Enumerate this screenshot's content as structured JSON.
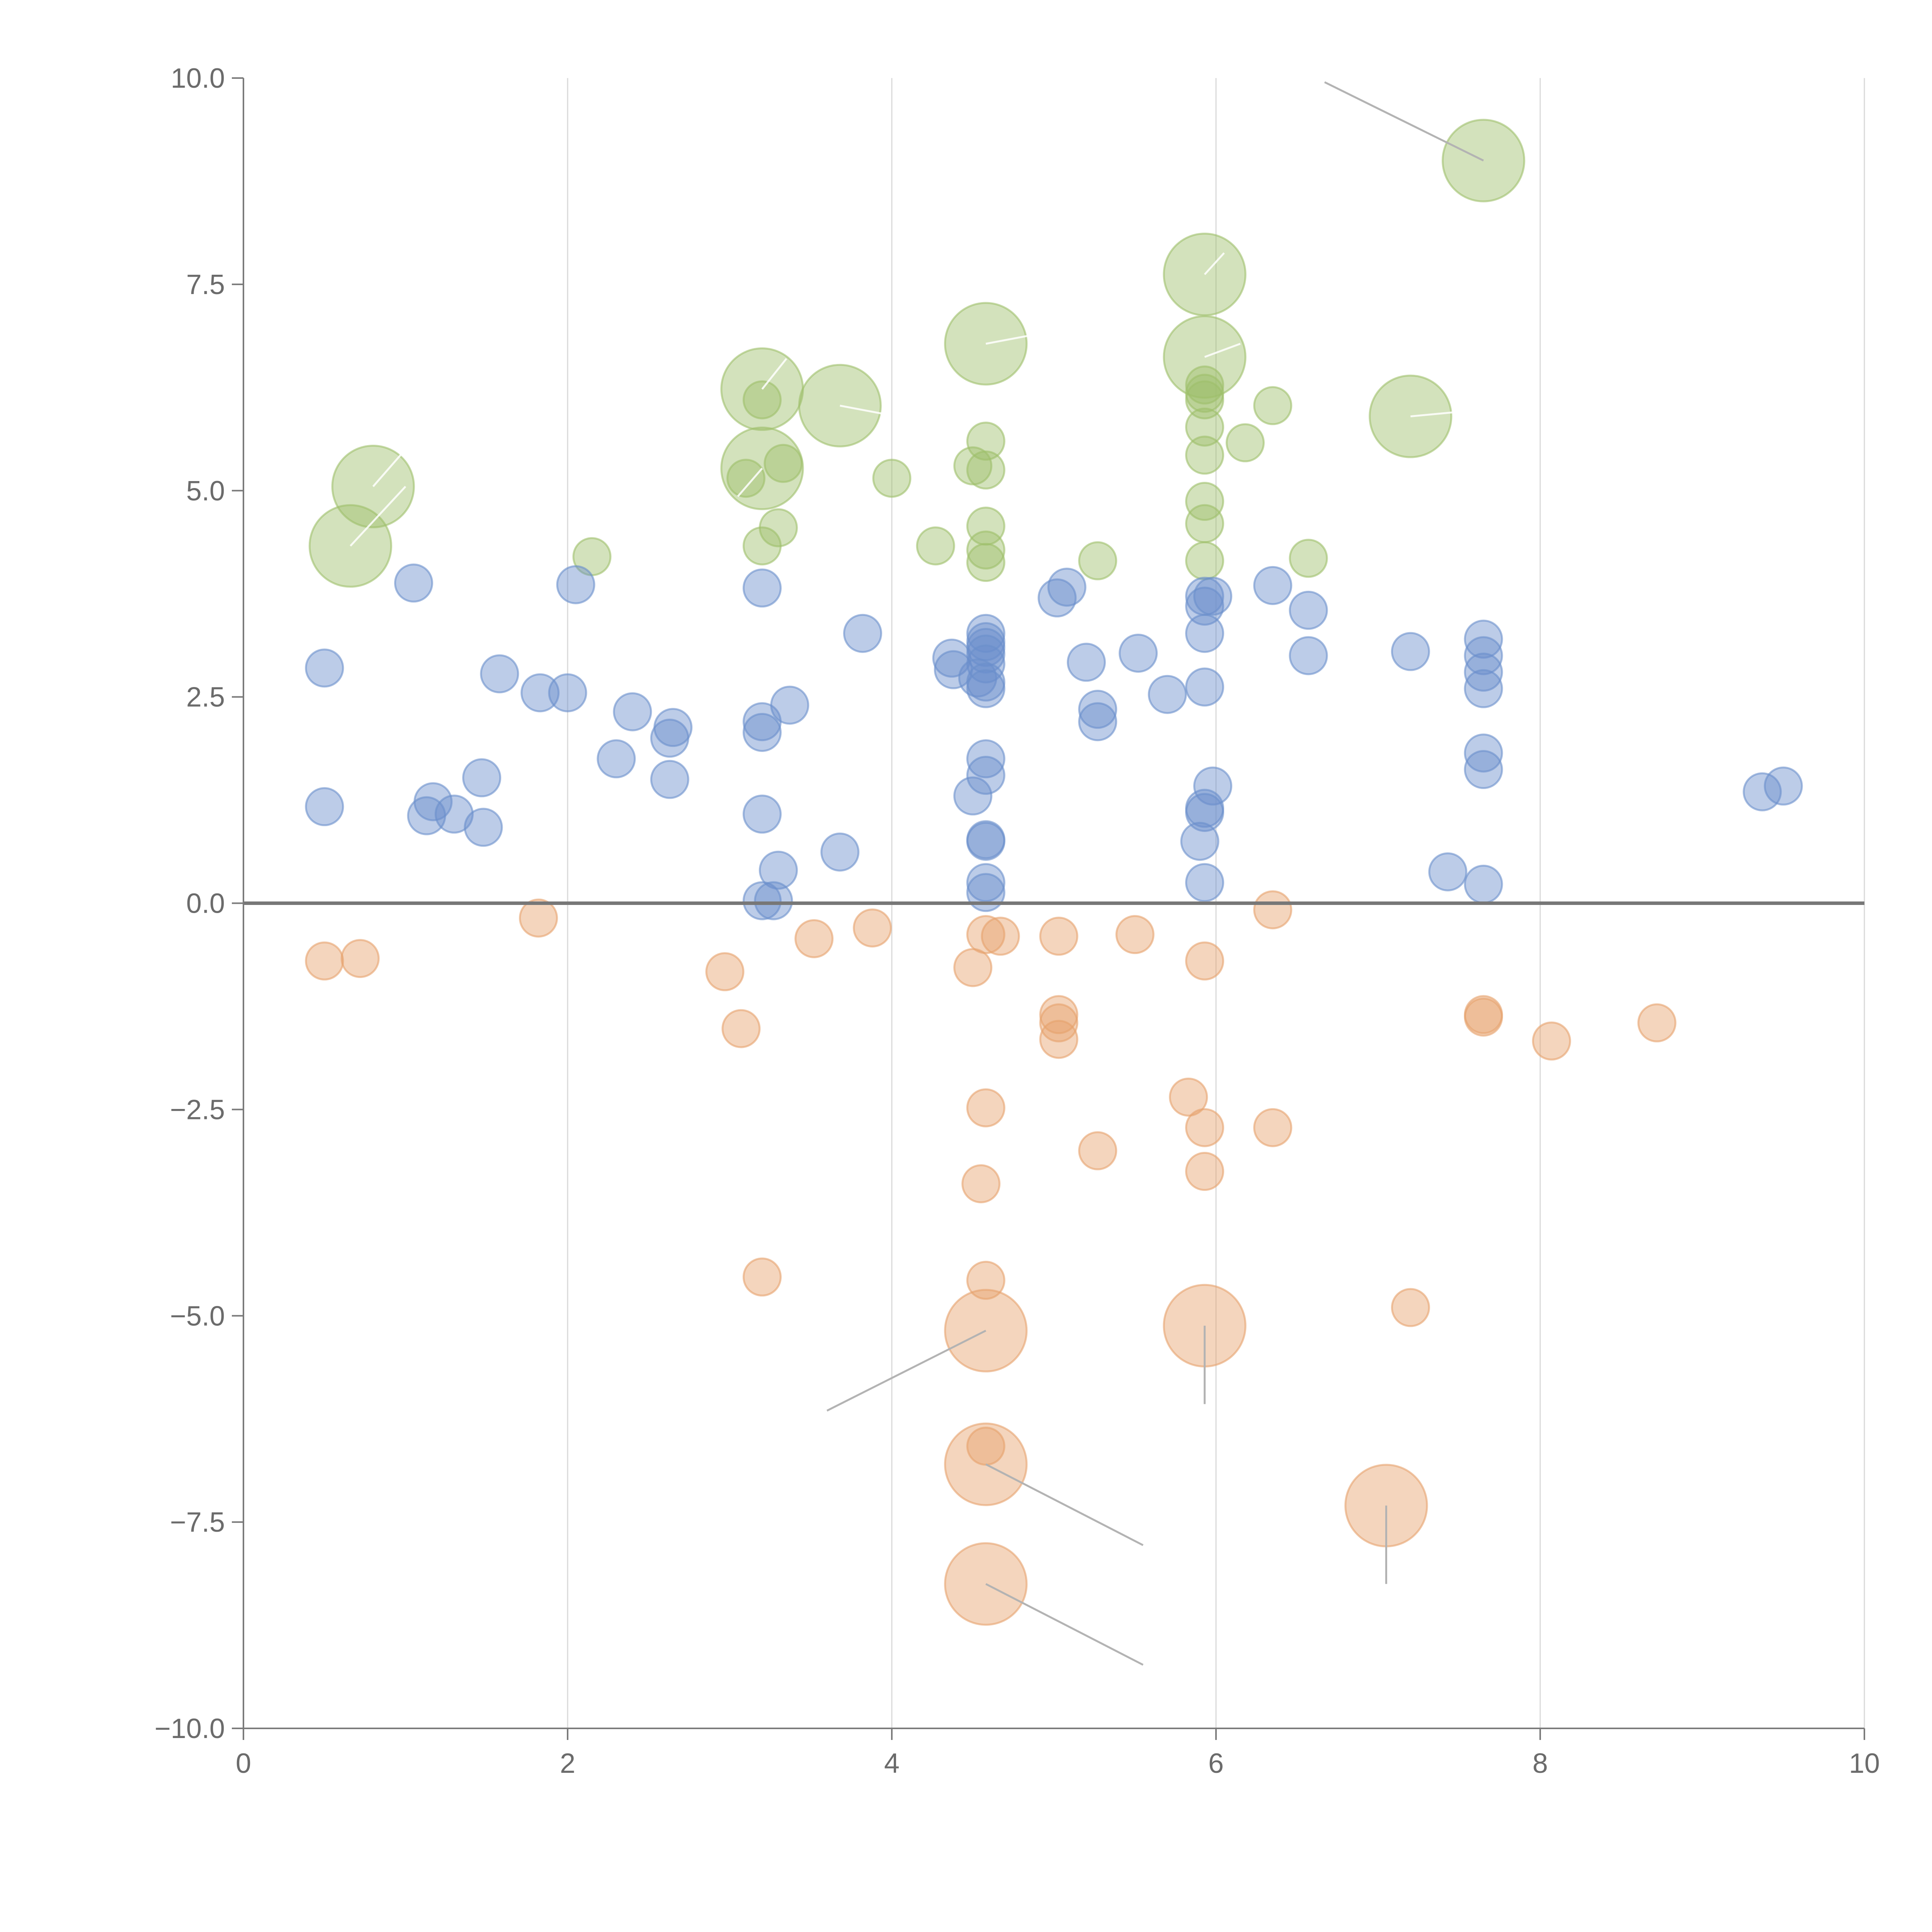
{
  "chart_data": {
    "type": "scatter",
    "title": "",
    "xlabel": "",
    "ylabel": "",
    "xlim": [
      0,
      10
    ],
    "ylim": [
      -10,
      10
    ],
    "grid": "vertical",
    "x_ticks": [
      0,
      2,
      4,
      6,
      8,
      10
    ],
    "x_tick_labels": [
      "0",
      "2",
      "4",
      "6",
      "8",
      "10"
    ],
    "y_ticks": [
      10,
      7.5,
      5,
      2.5,
      0,
      -2.5,
      -5,
      -7.5,
      -10
    ],
    "y_tick_labels": [
      "10.0",
      "7.5",
      "5.0",
      "2.5",
      "0.0",
      "−2.5",
      "−5.0",
      "−7.5",
      "−10.0"
    ],
    "reference_line": {
      "y": 0,
      "color": "#777777"
    },
    "colors": {
      "green": "#9ebf6a",
      "blue": "#6a8fcc",
      "orange": "#e6a26c"
    },
    "series": [
      {
        "name": "green",
        "color": "#9ebf6a",
        "points": [
          [
            0.8,
            5.05,
            2.2
          ],
          [
            0.66,
            4.33,
            2.2
          ],
          [
            2.15,
            4.2,
            1
          ],
          [
            3.2,
            6.23,
            2.2
          ],
          [
            3.2,
            5.27,
            2.2
          ],
          [
            3.2,
            6.1,
            1
          ],
          [
            3.1,
            5.15,
            1
          ],
          [
            3.2,
            4.33,
            1
          ],
          [
            3.33,
            5.33,
            1
          ],
          [
            3.3,
            4.55,
            1
          ],
          [
            3.68,
            6.03,
            2.2
          ],
          [
            4.0,
            5.15,
            1
          ],
          [
            4.27,
            4.33,
            1
          ],
          [
            4.5,
            5.3,
            1
          ],
          [
            4.58,
            5.6,
            1
          ],
          [
            4.58,
            5.25,
            1
          ],
          [
            4.58,
            4.57,
            1
          ],
          [
            4.58,
            4.28,
            1
          ],
          [
            4.58,
            4.13,
            1
          ],
          [
            4.58,
            6.78,
            2.2
          ],
          [
            5.27,
            4.15,
            1
          ],
          [
            5.93,
            7.62,
            2.2
          ],
          [
            5.93,
            6.62,
            2.2
          ],
          [
            5.93,
            6.28,
            1
          ],
          [
            5.93,
            6.18,
            1
          ],
          [
            5.93,
            6.1,
            1
          ],
          [
            5.93,
            5.77,
            1
          ],
          [
            5.93,
            5.43,
            1
          ],
          [
            5.93,
            4.87,
            1
          ],
          [
            5.93,
            4.6,
            1
          ],
          [
            5.93,
            4.15,
            1
          ],
          [
            6.18,
            5.58,
            1
          ],
          [
            6.35,
            6.03,
            1
          ],
          [
            6.57,
            4.18,
            1
          ],
          [
            7.2,
            5.9,
            2.2
          ],
          [
            7.65,
            9.0,
            2.2
          ]
        ]
      },
      {
        "name": "blue",
        "color": "#6a8fcc",
        "points": [
          [
            0.5,
            2.85,
            1
          ],
          [
            0.5,
            1.17,
            1
          ],
          [
            1.05,
            3.88,
            1
          ],
          [
            1.17,
            1.23,
            1
          ],
          [
            1.13,
            1.06,
            1
          ],
          [
            1.3,
            1.08,
            1
          ],
          [
            1.47,
            1.52,
            1
          ],
          [
            1.48,
            0.92,
            1
          ],
          [
            1.58,
            2.78,
            1
          ],
          [
            1.83,
            2.55,
            1
          ],
          [
            2.0,
            2.55,
            1
          ],
          [
            2.05,
            3.86,
            1
          ],
          [
            2.3,
            1.75,
            1
          ],
          [
            2.4,
            2.32,
            1
          ],
          [
            2.63,
            2.0,
            1
          ],
          [
            2.65,
            2.13,
            1
          ],
          [
            2.63,
            1.5,
            1
          ],
          [
            3.2,
            3.82,
            1
          ],
          [
            3.2,
            2.2,
            1
          ],
          [
            3.2,
            2.07,
            1
          ],
          [
            3.37,
            2.4,
            1
          ],
          [
            3.2,
            1.08,
            1
          ],
          [
            3.3,
            0.4,
            1
          ],
          [
            3.2,
            0.03,
            1
          ],
          [
            3.27,
            0.03,
            1
          ],
          [
            3.68,
            0.62,
            1
          ],
          [
            3.82,
            3.27,
            1
          ],
          [
            4.37,
            2.97,
            1
          ],
          [
            4.38,
            2.83,
            1
          ],
          [
            4.5,
            1.3,
            1
          ],
          [
            4.58,
            3.27,
            1
          ],
          [
            4.58,
            3.17,
            1
          ],
          [
            4.58,
            3.1,
            1
          ],
          [
            4.58,
            3.02,
            1
          ],
          [
            4.58,
            2.9,
            1
          ],
          [
            4.53,
            2.73,
            1
          ],
          [
            4.58,
            2.68,
            1
          ],
          [
            4.58,
            2.6,
            1
          ],
          [
            4.58,
            1.75,
            1
          ],
          [
            4.58,
            1.55,
            1
          ],
          [
            4.58,
            0.77,
            1
          ],
          [
            4.58,
            0.75,
            1
          ],
          [
            4.58,
            0.25,
            1
          ],
          [
            4.58,
            0.13,
            1
          ],
          [
            5.02,
            3.7,
            1
          ],
          [
            5.08,
            3.83,
            1
          ],
          [
            5.2,
            2.92,
            1
          ],
          [
            5.27,
            2.35,
            1
          ],
          [
            5.27,
            2.2,
            1
          ],
          [
            5.52,
            3.03,
            1
          ],
          [
            5.7,
            2.53,
            1
          ],
          [
            5.93,
            3.72,
            1
          ],
          [
            5.93,
            3.6,
            1
          ],
          [
            5.98,
            3.72,
            1
          ],
          [
            5.93,
            3.27,
            1
          ],
          [
            5.93,
            2.62,
            1
          ],
          [
            5.98,
            1.42,
            1
          ],
          [
            5.93,
            1.15,
            1
          ],
          [
            5.93,
            1.1,
            1
          ],
          [
            5.9,
            0.75,
            1
          ],
          [
            5.93,
            0.25,
            1
          ],
          [
            6.35,
            3.85,
            1
          ],
          [
            6.57,
            3.55,
            1
          ],
          [
            6.57,
            3.0,
            1
          ],
          [
            7.2,
            3.05,
            1
          ],
          [
            7.43,
            0.38,
            1
          ],
          [
            7.65,
            3.2,
            1
          ],
          [
            7.65,
            3.0,
            1
          ],
          [
            7.65,
            2.8,
            1
          ],
          [
            7.65,
            2.6,
            1
          ],
          [
            7.65,
            1.82,
            1
          ],
          [
            7.65,
            1.62,
            1
          ],
          [
            7.65,
            0.23,
            1
          ],
          [
            9.37,
            1.35,
            1
          ],
          [
            9.5,
            1.42,
            1
          ]
        ]
      },
      {
        "name": "orange",
        "color": "#e6a26c",
        "points": [
          [
            0.5,
            -0.7,
            1
          ],
          [
            0.72,
            -0.67,
            1
          ],
          [
            1.82,
            -0.18,
            1
          ],
          [
            2.97,
            -0.83,
            1
          ],
          [
            3.07,
            -1.52,
            1
          ],
          [
            3.2,
            -4.53,
            1
          ],
          [
            3.52,
            -0.43,
            1
          ],
          [
            3.88,
            -0.3,
            1
          ],
          [
            4.5,
            -0.78,
            1
          ],
          [
            4.58,
            -0.38,
            1
          ],
          [
            4.67,
            -0.4,
            1
          ],
          [
            4.58,
            -2.48,
            1
          ],
          [
            4.55,
            -3.4,
            1
          ],
          [
            4.58,
            -4.57,
            1
          ],
          [
            4.58,
            -5.18,
            2.2
          ],
          [
            4.58,
            -6.58,
            1
          ],
          [
            4.58,
            -6.8,
            2.2
          ],
          [
            4.58,
            -8.25,
            2.2
          ],
          [
            5.03,
            -0.4,
            1
          ],
          [
            5.03,
            -1.35,
            1
          ],
          [
            5.03,
            -1.45,
            1
          ],
          [
            5.03,
            -1.65,
            1
          ],
          [
            5.27,
            -3.0,
            1
          ],
          [
            5.5,
            -0.38,
            1
          ],
          [
            5.83,
            -2.35,
            1
          ],
          [
            5.93,
            -0.7,
            1
          ],
          [
            5.93,
            -2.72,
            1
          ],
          [
            5.93,
            -3.25,
            1
          ],
          [
            5.93,
            -5.12,
            2.2
          ],
          [
            6.35,
            -0.08,
            1
          ],
          [
            6.35,
            -2.72,
            1
          ],
          [
            7.05,
            -7.3,
            2.2
          ],
          [
            7.2,
            -4.9,
            1
          ],
          [
            7.65,
            -1.35,
            1
          ],
          [
            7.65,
            -1.38,
            1
          ],
          [
            8.07,
            -1.67,
            1
          ],
          [
            8.72,
            -1.45,
            1
          ]
        ]
      }
    ],
    "leader_lines": [
      {
        "from": [
          7.65,
          9.0
        ],
        "to": [
          6.67,
          9.95
        ],
        "style": "gray"
      },
      {
        "from": [
          4.58,
          -5.18
        ],
        "to": [
          3.6,
          -6.15
        ],
        "style": "gray"
      },
      {
        "from": [
          5.93,
          -5.12
        ],
        "to": [
          5.93,
          -6.07
        ],
        "style": "gray"
      },
      {
        "from": [
          4.58,
          -6.8
        ],
        "to": [
          5.55,
          -7.78
        ],
        "style": "gray"
      },
      {
        "from": [
          4.58,
          -8.25
        ],
        "to": [
          5.55,
          -9.23
        ],
        "style": "gray"
      },
      {
        "from": [
          7.05,
          -7.3
        ],
        "to": [
          7.05,
          -8.25
        ],
        "style": "gray"
      },
      {
        "from": [
          0.8,
          5.05
        ],
        "to": [
          1.0,
          5.5
        ],
        "style": "light"
      },
      {
        "from": [
          0.66,
          4.33
        ],
        "to": [
          1.0,
          5.05
        ],
        "style": "light"
      },
      {
        "from": [
          3.2,
          6.23
        ],
        "to": [
          3.35,
          6.6
        ],
        "style": "light"
      },
      {
        "from": [
          3.2,
          5.27
        ],
        "to": [
          3.05,
          4.93
        ],
        "style": "light"
      },
      {
        "from": [
          3.68,
          6.03
        ],
        "to": [
          3.95,
          5.93
        ],
        "style": "light"
      },
      {
        "from": [
          4.58,
          6.78
        ],
        "to": [
          4.85,
          6.88
        ],
        "style": "light"
      },
      {
        "from": [
          5.93,
          7.62
        ],
        "to": [
          6.05,
          7.88
        ],
        "style": "light"
      },
      {
        "from": [
          5.93,
          6.62
        ],
        "to": [
          6.15,
          6.78
        ],
        "style": "light"
      },
      {
        "from": [
          7.2,
          5.9
        ],
        "to": [
          7.47,
          5.95
        ],
        "style": "light"
      }
    ]
  }
}
